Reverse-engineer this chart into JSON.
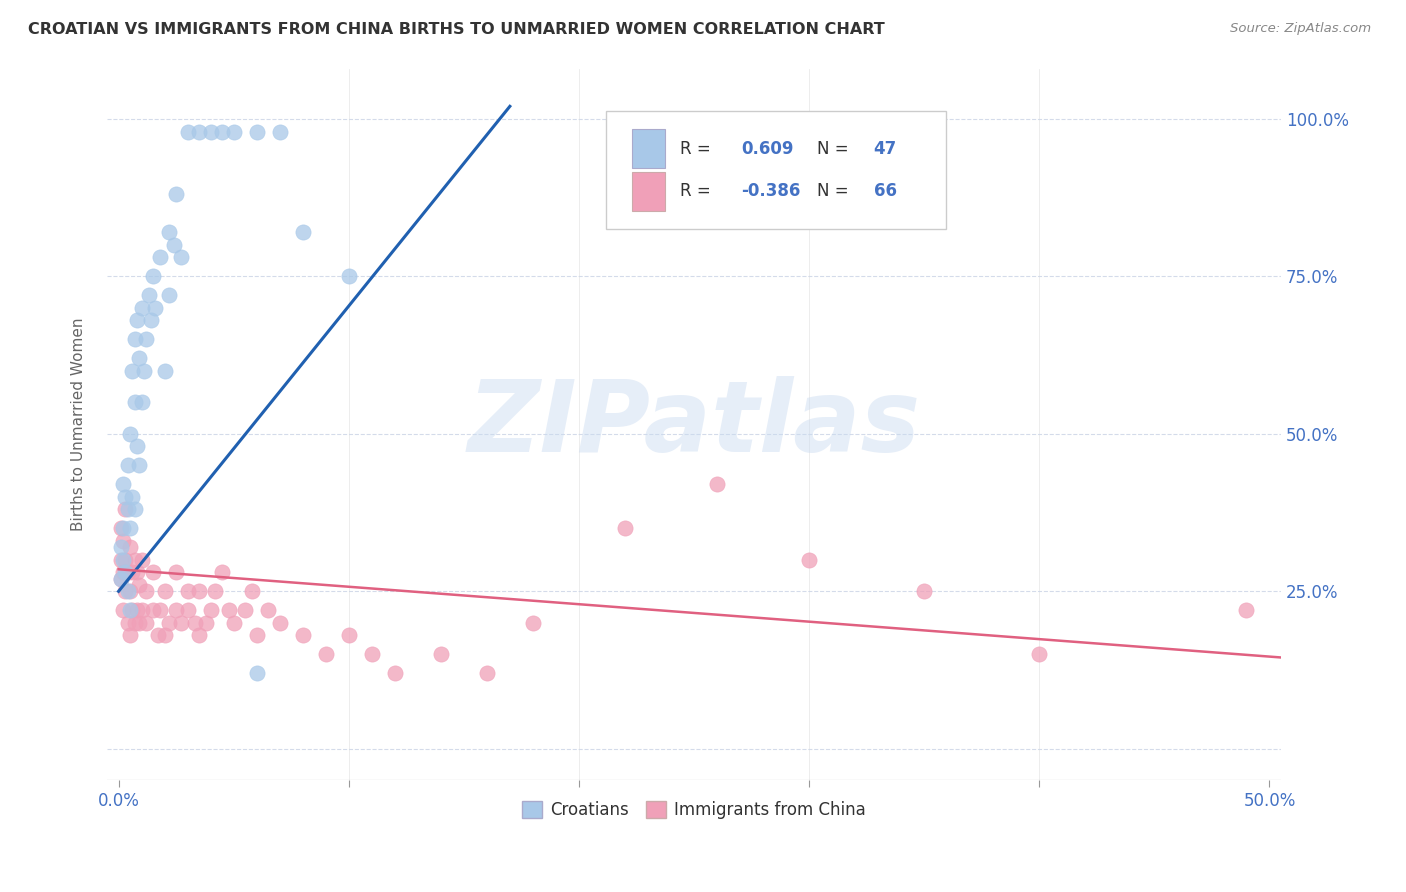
{
  "title": "CROATIAN VS IMMIGRANTS FROM CHINA BIRTHS TO UNMARRIED WOMEN CORRELATION CHART",
  "source": "Source: ZipAtlas.com",
  "ylabel": "Births to Unmarried Women",
  "xlim": [
    -0.005,
    0.505
  ],
  "ylim": [
    -0.05,
    1.08
  ],
  "legend_R1": "0.609",
  "legend_N1": "47",
  "legend_R2": "-0.386",
  "legend_N2": "66",
  "blue_scatter_color": "#a8c8e8",
  "blue_line_color": "#2060b0",
  "pink_scatter_color": "#f0a0b8",
  "pink_line_color": "#e06080",
  "watermark_text": "ZIPatlas",
  "legend_label1": "Croatians",
  "legend_label2": "Immigrants from China",
  "grid_color": "#d0d8e8",
  "background_color": "#ffffff",
  "croatian_x": [
    0.001,
    0.001,
    0.002,
    0.002,
    0.002,
    0.003,
    0.003,
    0.004,
    0.004,
    0.004,
    0.005,
    0.005,
    0.005,
    0.006,
    0.006,
    0.007,
    0.007,
    0.007,
    0.008,
    0.008,
    0.009,
    0.009,
    0.01,
    0.01,
    0.011,
    0.012,
    0.013,
    0.014,
    0.015,
    0.016,
    0.018,
    0.02,
    0.022,
    0.022,
    0.024,
    0.025,
    0.027,
    0.03,
    0.035,
    0.04,
    0.045,
    0.05,
    0.06,
    0.07,
    0.08,
    0.1,
    0.06
  ],
  "croatian_y": [
    0.27,
    0.32,
    0.3,
    0.35,
    0.42,
    0.28,
    0.4,
    0.25,
    0.38,
    0.45,
    0.22,
    0.35,
    0.5,
    0.4,
    0.6,
    0.38,
    0.55,
    0.65,
    0.48,
    0.68,
    0.45,
    0.62,
    0.55,
    0.7,
    0.6,
    0.65,
    0.72,
    0.68,
    0.75,
    0.7,
    0.78,
    0.6,
    0.72,
    0.82,
    0.8,
    0.88,
    0.78,
    0.98,
    0.98,
    0.98,
    0.98,
    0.98,
    0.98,
    0.98,
    0.82,
    0.75,
    0.12
  ],
  "china_x": [
    0.001,
    0.001,
    0.001,
    0.002,
    0.002,
    0.002,
    0.003,
    0.003,
    0.003,
    0.004,
    0.004,
    0.005,
    0.005,
    0.005,
    0.006,
    0.006,
    0.007,
    0.007,
    0.008,
    0.008,
    0.009,
    0.009,
    0.01,
    0.01,
    0.012,
    0.012,
    0.015,
    0.015,
    0.017,
    0.018,
    0.02,
    0.02,
    0.022,
    0.025,
    0.025,
    0.027,
    0.03,
    0.03,
    0.033,
    0.035,
    0.035,
    0.038,
    0.04,
    0.042,
    0.045,
    0.048,
    0.05,
    0.055,
    0.058,
    0.06,
    0.065,
    0.07,
    0.08,
    0.09,
    0.1,
    0.11,
    0.12,
    0.14,
    0.16,
    0.18,
    0.22,
    0.26,
    0.3,
    0.35,
    0.4,
    0.49
  ],
  "china_y": [
    0.27,
    0.3,
    0.35,
    0.22,
    0.28,
    0.33,
    0.25,
    0.3,
    0.38,
    0.2,
    0.28,
    0.18,
    0.25,
    0.32,
    0.22,
    0.28,
    0.2,
    0.3,
    0.22,
    0.28,
    0.2,
    0.26,
    0.22,
    0.3,
    0.2,
    0.25,
    0.22,
    0.28,
    0.18,
    0.22,
    0.18,
    0.25,
    0.2,
    0.22,
    0.28,
    0.2,
    0.22,
    0.25,
    0.2,
    0.18,
    0.25,
    0.2,
    0.22,
    0.25,
    0.28,
    0.22,
    0.2,
    0.22,
    0.25,
    0.18,
    0.22,
    0.2,
    0.18,
    0.15,
    0.18,
    0.15,
    0.12,
    0.15,
    0.12,
    0.2,
    0.35,
    0.42,
    0.3,
    0.25,
    0.15,
    0.22
  ],
  "blue_trendline_x": [
    0.0,
    0.17
  ],
  "blue_trendline_y": [
    0.25,
    1.02
  ],
  "pink_trendline_x": [
    0.0,
    0.505
  ],
  "pink_trendline_y": [
    0.285,
    0.145
  ]
}
